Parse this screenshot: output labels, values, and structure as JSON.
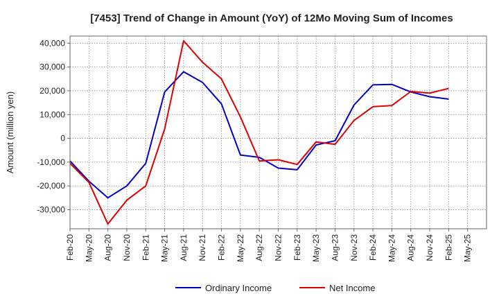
{
  "chart_data": {
    "type": "line",
    "title": "[7453]  Trend of Change in Amount (YoY) of 12Mo Moving Sum of Incomes",
    "xlabel": "",
    "ylabel": "Amount (million yen)",
    "ylim": [
      -38000,
      43000
    ],
    "yticks": [
      40000,
      30000,
      20000,
      10000,
      0,
      -10000,
      -20000,
      -30000
    ],
    "ytick_labels": [
      "40,000",
      "30,000",
      "20,000",
      "10,000",
      "0",
      "-10,000",
      "-20,000",
      "-30,000"
    ],
    "x": [
      "Feb-20",
      "May-20",
      "Aug-20",
      "Nov-20",
      "Feb-21",
      "May-21",
      "Aug-21",
      "Nov-21",
      "Feb-22",
      "May-22",
      "Aug-22",
      "Nov-22",
      "Feb-23",
      "May-23",
      "Aug-23",
      "Nov-23",
      "Feb-24",
      "May-24",
      "Aug-24",
      "Nov-24",
      "Feb-25",
      "May-25"
    ],
    "grid": true,
    "legend_position": "bottom",
    "series": [
      {
        "name": "Ordinary Income",
        "color": "#0000cc",
        "values": [
          -9500,
          -18000,
          -25000,
          -20000,
          -10500,
          19500,
          28000,
          23500,
          14500,
          -7000,
          -8000,
          -12500,
          -13200,
          -2800,
          -1000,
          14000,
          22500,
          22700,
          19500,
          17500,
          16500,
          null
        ]
      },
      {
        "name": "Net Income",
        "color": "#dd0000",
        "values": [
          -10500,
          -18500,
          -36000,
          -26000,
          -20000,
          4000,
          41000,
          32000,
          25000,
          9000,
          -9500,
          -9000,
          -11000,
          -1500,
          -2500,
          7500,
          13300,
          13800,
          19700,
          19000,
          21000,
          null
        ]
      }
    ]
  }
}
